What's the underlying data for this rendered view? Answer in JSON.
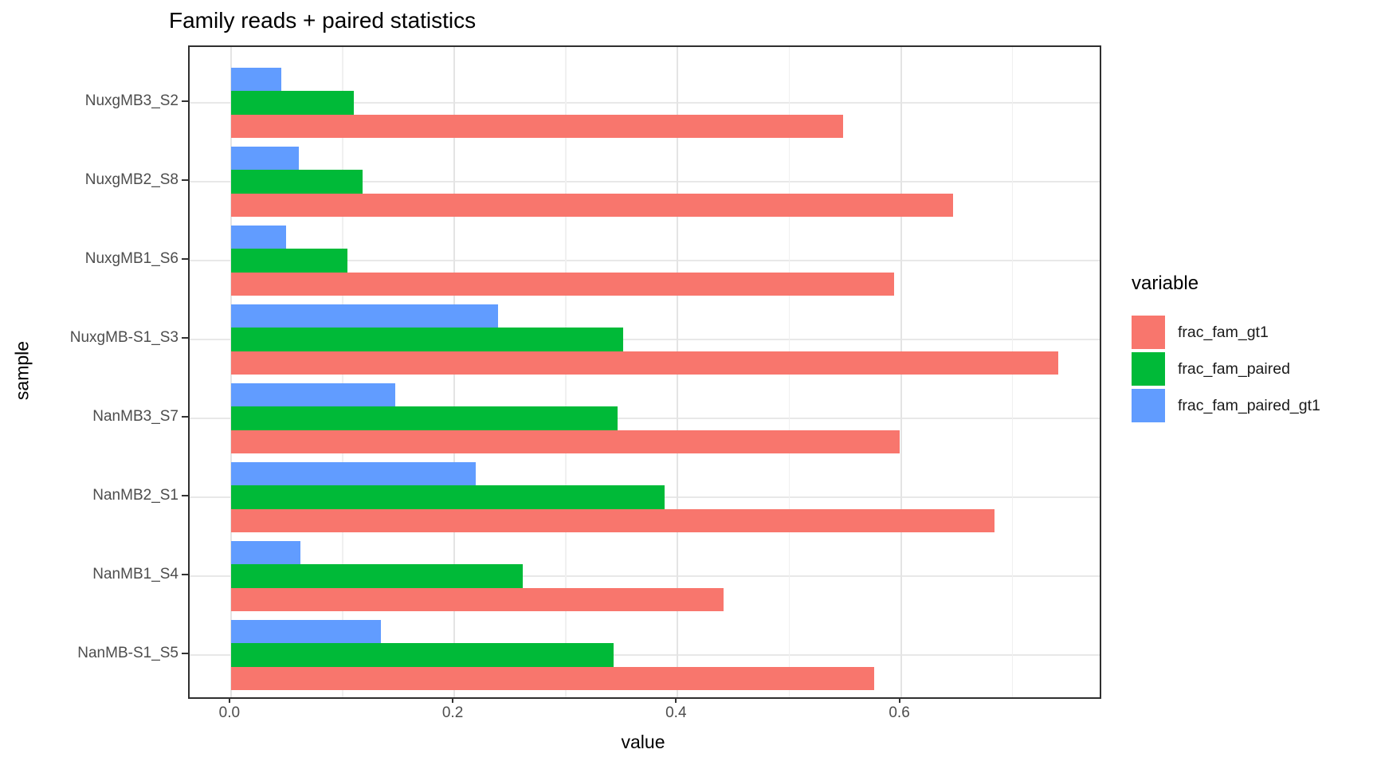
{
  "figure": {
    "title": "Family reads + paired statistics",
    "x_axis": {
      "label": "value",
      "tick_labels": [
        "0.0",
        "0.2",
        "0.4",
        "0.6"
      ]
    },
    "y_axis": {
      "label": "sample"
    },
    "legend": {
      "title": "variable"
    },
    "colors": {
      "panel_border": "#2f2f2f",
      "grid_major": "#e4e4e4",
      "grid_minor": "#f0f0f0",
      "axis_text": "#4d4d4d"
    }
  },
  "chart_data": {
    "type": "bar",
    "orientation": "horizontal",
    "title": "Family reads + paired statistics",
    "xlabel": "value",
    "ylabel": "sample",
    "legend_title": "variable",
    "legend_position": "right",
    "grid": true,
    "xlim": [
      -0.037,
      0.778
    ],
    "x_major_ticks": [
      0.0,
      0.2,
      0.4,
      0.6
    ],
    "x_tick_labels": [
      "0.0",
      "0.2",
      "0.4",
      "0.6"
    ],
    "x_minor_ticks": [
      0.1,
      0.3,
      0.5,
      0.7
    ],
    "categories": [
      "NuxgMB3_S2",
      "NuxgMB2_S8",
      "NuxgMB1_S6",
      "NuxgMB-S1_S3",
      "NanMB3_S7",
      "NanMB2_S1",
      "NanMB1_S4",
      "NanMB-S1_S5"
    ],
    "series": [
      {
        "name": "frac_fam_gt1",
        "color": "#F8766D",
        "values": [
          0.548,
          0.647,
          0.594,
          0.741,
          0.599,
          0.684,
          0.441,
          0.576
        ]
      },
      {
        "name": "frac_fam_paired",
        "color": "#00BA38",
        "values": [
          0.11,
          0.118,
          0.104,
          0.351,
          0.346,
          0.388,
          0.261,
          0.343
        ]
      },
      {
        "name": "frac_fam_paired_gt1",
        "color": "#619CFF",
        "values": [
          0.045,
          0.061,
          0.049,
          0.239,
          0.147,
          0.219,
          0.062,
          0.134
        ]
      }
    ]
  }
}
